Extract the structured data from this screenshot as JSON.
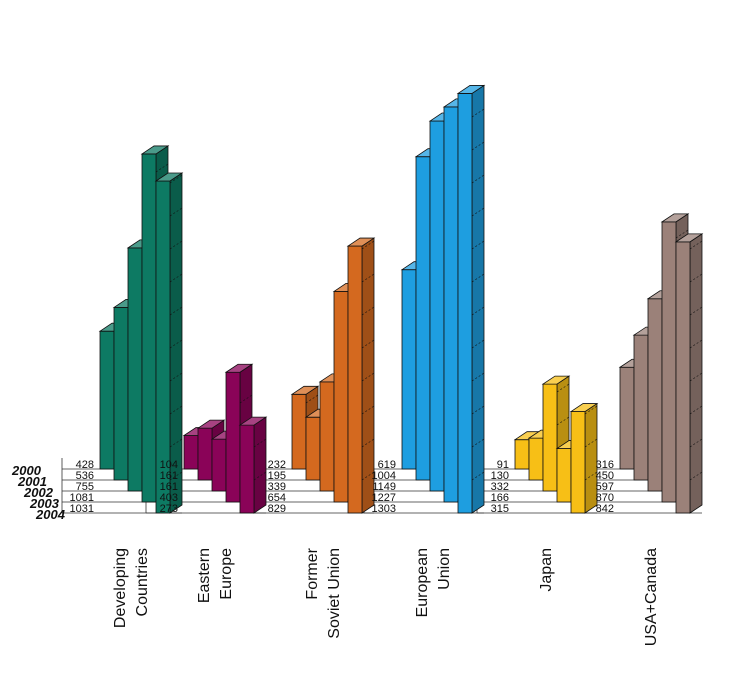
{
  "chart_data": {
    "type": "bar",
    "variant": "3d-stacked-depth",
    "years": [
      "2000",
      "2001",
      "2002",
      "2003",
      "2004"
    ],
    "groups": [
      {
        "name": "Developing Countries",
        "lines": [
          "Developing",
          "Countries"
        ],
        "color": "#0d7a63",
        "values": [
          428,
          536,
          755,
          1081,
          1031
        ]
      },
      {
        "name": "Eastern Europe",
        "lines": [
          "Eastern",
          "Europe"
        ],
        "color": "#8a0358",
        "values": [
          104,
          161,
          161,
          403,
          273
        ]
      },
      {
        "name": "Former Soviet Union",
        "lines": [
          "Former",
          "Soviet Union"
        ],
        "color": "#d4691f",
        "values": [
          232,
          195,
          339,
          654,
          829
        ]
      },
      {
        "name": "European Union",
        "lines": [
          "European",
          "Union"
        ],
        "color": "#1e9ee0",
        "values": [
          619,
          1004,
          1149,
          1227,
          1303
        ]
      },
      {
        "name": "Japan",
        "lines": [
          "Japan"
        ],
        "color": "#f7bf16",
        "values": [
          91,
          130,
          332,
          166,
          315
        ]
      },
      {
        "name": "USA+Canada",
        "lines": [
          "USA+Canada"
        ],
        "color": "#9b8179",
        "values": [
          316,
          450,
          597,
          870,
          842
        ]
      }
    ]
  }
}
